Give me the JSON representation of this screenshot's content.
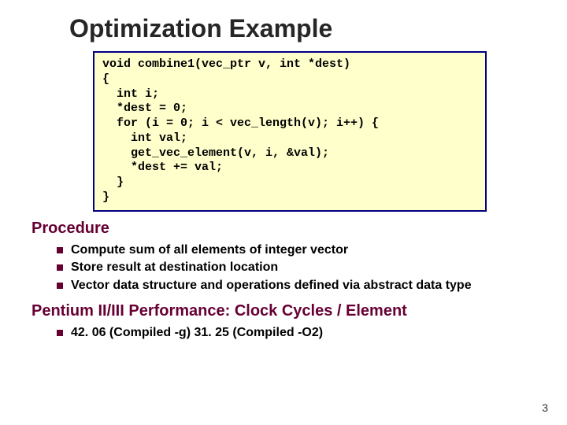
{
  "title": "Optimization Example",
  "code": "void combine1(vec_ptr v, int *dest)\n{\n  int i;\n  *dest = 0;\n  for (i = 0; i < vec_length(v); i++) {\n    int val;\n    get_vec_element(v, i, &val);\n    *dest += val;\n  }\n}",
  "section1": {
    "heading": "Procedure",
    "bullets": [
      "Compute sum of all elements of integer vector",
      "Store result at destination location",
      "Vector data structure and operations defined via abstract data type"
    ]
  },
  "section2": {
    "heading": "Pentium II/III Performance: Clock Cycles / Element",
    "bullets": [
      "42. 06 (Compiled -g) 31. 25 (Compiled -O2)"
    ]
  },
  "page_number": "3",
  "colors": {
    "title_color": "#262626",
    "heading_color": "#660033",
    "bullet_square": "#660033",
    "code_bg": "#ffffcc",
    "code_border": "#000080",
    "text": "#000000",
    "background": "#ffffff"
  }
}
